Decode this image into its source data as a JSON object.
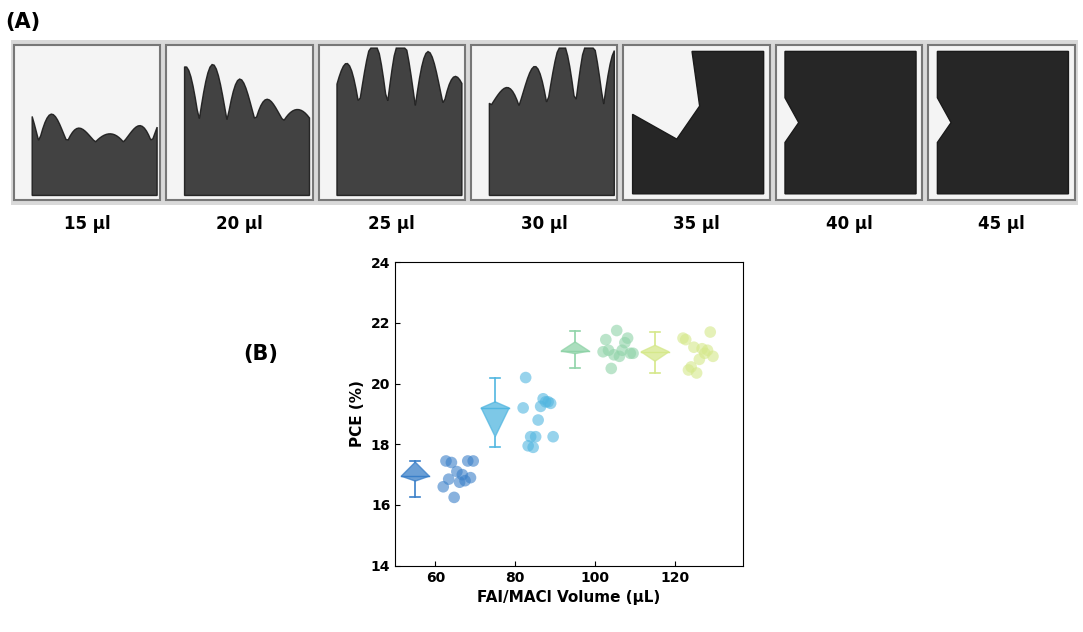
{
  "panel_labels": [
    "(A)",
    "(B)"
  ],
  "photo": {
    "sample_labels": [
      "15 µl",
      "20 µl",
      "25 µl",
      "30 µl",
      "35 µl",
      "40 µl",
      "45 µl"
    ]
  },
  "chart_data": {
    "type": "box_scatter",
    "xlabel": "FAI/MACl Volume (µL)",
    "ylabel": "PCE (%)",
    "xlim": [
      50,
      137
    ],
    "xticks": [
      60,
      80,
      100,
      120
    ],
    "ylim": [
      14,
      24
    ],
    "yticks": [
      14,
      16,
      18,
      20,
      22,
      24
    ],
    "series": [
      {
        "x": 60,
        "color": "#3a7fc8",
        "values": [
          16.6,
          17.1,
          16.9,
          17.4,
          16.8,
          17.45,
          16.75,
          17.45,
          16.25,
          17.45,
          16.85,
          17.0
        ]
      },
      {
        "x": 80,
        "color": "#52b6e0",
        "values": [
          19.2,
          18.25,
          19.4,
          17.95,
          19.25,
          18.25,
          17.9,
          19.4,
          20.2,
          18.8,
          19.35,
          18.25,
          19.5
        ]
      },
      {
        "x": 100,
        "color": "#8fd3a8",
        "values": [
          21.05,
          21.75,
          21.0,
          20.5,
          21.35,
          21.45,
          20.9,
          21.0,
          20.95,
          21.5,
          21.1,
          21.1
        ]
      },
      {
        "x": 120,
        "color": "#d5e88a",
        "values": [
          21.5,
          20.35,
          21.7,
          20.55,
          21.0,
          21.45,
          20.8,
          20.9,
          21.2,
          21.1,
          20.45,
          21.15
        ]
      }
    ]
  }
}
